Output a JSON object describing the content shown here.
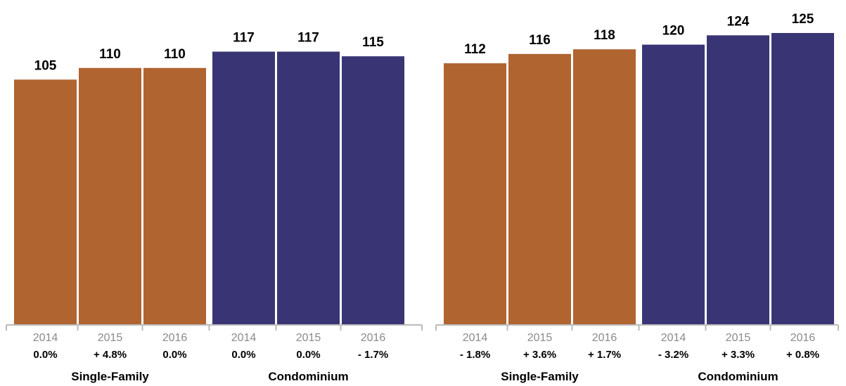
{
  "chart_data": {
    "type": "bar",
    "colors": {
      "single_family": "#b06430",
      "condominium": "#393575",
      "axis": "#bbbbbb"
    },
    "ylim": [
      0,
      130
    ],
    "grid": false,
    "panels": [
      {
        "groups": [
          {
            "label": "Single-Family",
            "color_key": "single_family",
            "bars": [
              {
                "year": "2014",
                "value": 105,
                "change": "0.0%"
              },
              {
                "year": "2015",
                "value": 110,
                "change": "+ 4.8%"
              },
              {
                "year": "2016",
                "value": 110,
                "change": "0.0%"
              }
            ]
          },
          {
            "label": "Condominium",
            "color_key": "condominium",
            "bars": [
              {
                "year": "2014",
                "value": 117,
                "change": "0.0%"
              },
              {
                "year": "2015",
                "value": 117,
                "change": "0.0%"
              },
              {
                "year": "2016",
                "value": 115,
                "change": "- 1.7%"
              }
            ]
          }
        ]
      },
      {
        "groups": [
          {
            "label": "Single-Family",
            "color_key": "single_family",
            "bars": [
              {
                "year": "2014",
                "value": 112,
                "change": "- 1.8%"
              },
              {
                "year": "2015",
                "value": 116,
                "change": "+ 3.6%"
              },
              {
                "year": "2016",
                "value": 118,
                "change": "+ 1.7%"
              }
            ]
          },
          {
            "label": "Condominium",
            "color_key": "condominium",
            "bars": [
              {
                "year": "2014",
                "value": 120,
                "change": "- 3.2%"
              },
              {
                "year": "2015",
                "value": 124,
                "change": "+ 3.3%"
              },
              {
                "year": "2016",
                "value": 125,
                "change": "+ 0.8%"
              }
            ]
          }
        ]
      }
    ]
  }
}
